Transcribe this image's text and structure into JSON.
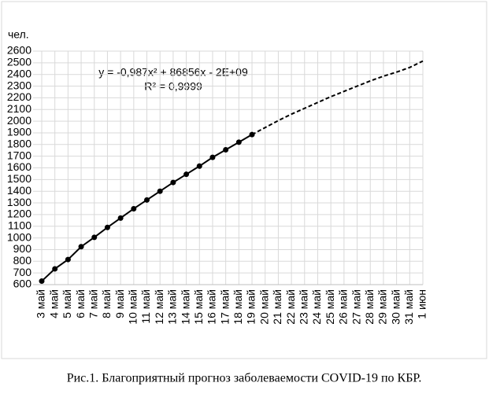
{
  "chart_data": {
    "type": "line",
    "caption": "Рис.1. Благоприятный прогноз заболеваемости COVID-19 по КБР.",
    "y_label": "чел.",
    "annotations": [
      "y = -0,987x² + 86856x - 2E+09",
      "R² = 0,9999"
    ],
    "categories": [
      "3 май",
      "4 май",
      "5 май",
      "6 май",
      "7 май",
      "8 май",
      "9 май",
      "10 май",
      "11 май",
      "12 май",
      "13 май",
      "14 май",
      "15 май",
      "16 май",
      "17 май",
      "18 май",
      "19 май",
      "20 май",
      "21 май",
      "22 май",
      "23 май",
      "24 май",
      "25 май",
      "26 май",
      "27 май",
      "28 май",
      "29 май",
      "30 май",
      "31 май",
      "1 июн"
    ],
    "series": [
      {
        "color": "#000000",
        "style": "solid",
        "markers": true,
        "values": [
          630,
          735,
          815,
          925,
          1005,
          1090,
          1170,
          1250,
          1325,
          1400,
          1475,
          1545,
          1615,
          1690,
          1755,
          1820,
          1885,
          null,
          null,
          null,
          null,
          null,
          null,
          null,
          null,
          null,
          null,
          null,
          null,
          null
        ]
      },
      {
        "color": "#000000",
        "style": "dashed",
        "markers": false,
        "values": [
          null,
          null,
          null,
          null,
          null,
          null,
          null,
          null,
          null,
          null,
          null,
          null,
          null,
          null,
          null,
          null,
          1885,
          1945,
          2005,
          2060,
          2110,
          2160,
          2210,
          2255,
          2300,
          2345,
          2385,
          2420,
          2460,
          2515
        ]
      }
    ],
    "ylim": [
      600,
      2600
    ],
    "yticks": [
      600,
      700,
      800,
      900,
      1000,
      1100,
      1200,
      1300,
      1400,
      1500,
      1600,
      1700,
      1800,
      1900,
      2000,
      2100,
      2200,
      2300,
      2400,
      2500,
      2600
    ],
    "grid": true
  }
}
